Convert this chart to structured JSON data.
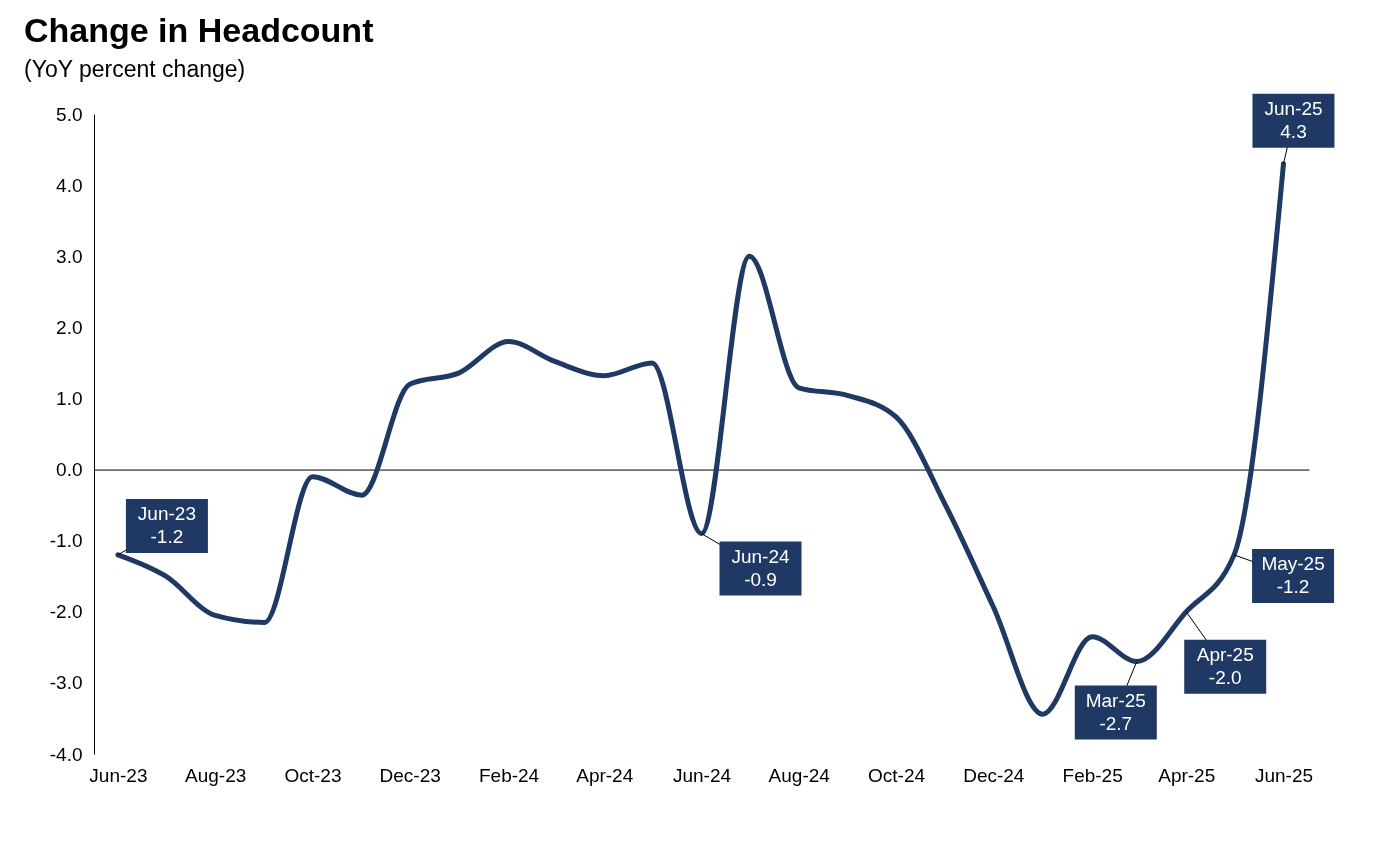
{
  "chart_data": {
    "type": "line",
    "title": "Change in Headcount",
    "subtitle": "(YoY percent change)",
    "x": [
      "2023-06",
      "2023-07",
      "2023-08",
      "2023-09",
      "2023-10",
      "2023-11",
      "2023-12",
      "2024-01",
      "2024-02",
      "2024-03",
      "2024-04",
      "2024-05",
      "2024-06",
      "2024-07",
      "2024-08",
      "2024-09",
      "2024-10",
      "2024-11",
      "2024-12",
      "2025-01",
      "2025-02",
      "2025-03",
      "2025-04",
      "2025-05",
      "2025-06"
    ],
    "series": [
      {
        "color": "#1f3864",
        "values": [
          -1.2,
          -1.5,
          -2.05,
          -2.15,
          -0.1,
          -0.36,
          1.2,
          1.36,
          1.8,
          1.52,
          1.32,
          1.5,
          -0.9,
          3.0,
          1.15,
          1.04,
          0.74,
          -0.5,
          -1.93,
          -3.44,
          -2.35,
          -2.7,
          -2.0,
          -1.2,
          4.3
        ]
      }
    ],
    "xlim": [
      "2023-05-17",
      "2025-06-17"
    ],
    "xticks": [
      {
        "value": "2023-06",
        "label": "Jun-23"
      },
      {
        "value": "2023-08",
        "label": "Aug-23"
      },
      {
        "value": "2023-10",
        "label": "Oct-23"
      },
      {
        "value": "2023-12",
        "label": "Dec-23"
      },
      {
        "value": "2024-02",
        "label": "Feb-24"
      },
      {
        "value": "2024-04",
        "label": "Apr-24"
      },
      {
        "value": "2024-06",
        "label": "Jun-24"
      },
      {
        "value": "2024-08",
        "label": "Aug-24"
      },
      {
        "value": "2024-10",
        "label": "Oct-24"
      },
      {
        "value": "2024-12",
        "label": "Dec-24"
      },
      {
        "value": "2025-02",
        "label": "Feb-25"
      },
      {
        "value": "2025-04",
        "label": "Apr-25"
      },
      {
        "value": "2025-06",
        "label": "Jun-25"
      }
    ],
    "ylim": [
      -4,
      5
    ],
    "yticks": [
      {
        "value": -4,
        "label": "-4.0"
      },
      {
        "value": -3,
        "label": "-3.0"
      },
      {
        "value": -2,
        "label": "-2.0"
      },
      {
        "value": -1,
        "label": "-1.0"
      },
      {
        "value": 0,
        "label": "0.0"
      },
      {
        "value": 1,
        "label": "1.0"
      },
      {
        "value": 2,
        "label": "2.0"
      },
      {
        "value": 3,
        "label": "3.0"
      },
      {
        "value": 4,
        "label": "4.0"
      },
      {
        "value": 5,
        "label": "5.0"
      }
    ],
    "annotations": [
      {
        "text": "Jun-23\n-1.2",
        "x": "2023-06",
        "y": -1.2
      },
      {
        "text": "Jun-24\n-0.9",
        "x": "2024-06",
        "y": -0.9
      },
      {
        "text": "Mar-25\n-2.7",
        "x": "2025-03",
        "y": -2.7
      },
      {
        "text": "Apr-25\n-2.0",
        "x": "2025-04",
        "y": -2.0
      },
      {
        "text": "May-25\n-1.2",
        "x": "2025-05",
        "y": -1.2
      },
      {
        "text": "Jun-25\n4.3",
        "x": "2025-06",
        "y": 4.3
      }
    ],
    "line_style": "solid",
    "marker": "none"
  }
}
